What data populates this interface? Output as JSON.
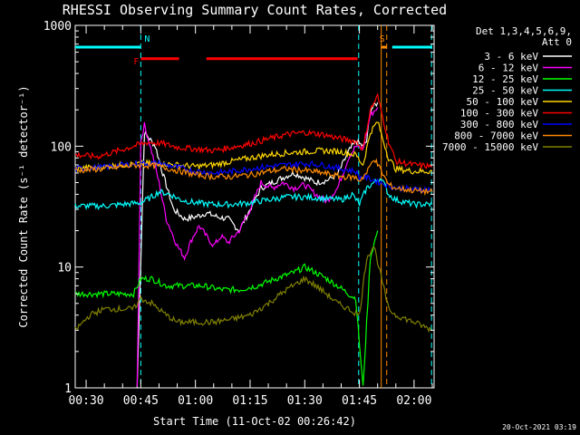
{
  "chart_data": {
    "type": "line",
    "title": "RHESSI Observing Summary Count Rates, Corrected",
    "xlabel": "Start Time (11-Oct-02 00:26:42)",
    "ylabel": "Corrected Count Rate (s⁻¹ detector⁻¹)",
    "y_log": true,
    "ylim": [
      1,
      1000
    ],
    "y_ticks": [
      "1",
      "10",
      "100",
      "1000"
    ],
    "x_range_minutes_from_0030": [
      -3.0,
      95.5
    ],
    "x_ticks": [
      {
        "min": 0,
        "label": "00:30"
      },
      {
        "min": 15,
        "label": "00:45"
      },
      {
        "min": 30,
        "label": "01:00"
      },
      {
        "min": 45,
        "label": "01:15"
      },
      {
        "min": 60,
        "label": "01:30"
      },
      {
        "min": 75,
        "label": "01:45"
      },
      {
        "min": 90,
        "label": "02:00"
      }
    ],
    "legend": {
      "placement": "right",
      "header1": "Det 1,3,4,5,6,9,",
      "header2": "Att 0"
    },
    "series": [
      {
        "name": "3 - 6 keV",
        "color": "#ffffff",
        "points": [
          [
            14,
            1
          ],
          [
            16,
            130
          ],
          [
            19,
            100
          ],
          [
            21,
            60
          ],
          [
            24,
            30
          ],
          [
            27,
            25
          ],
          [
            30,
            26
          ],
          [
            33,
            28
          ],
          [
            36,
            26
          ],
          [
            39,
            25
          ],
          [
            42,
            20
          ],
          [
            45,
            30
          ],
          [
            48,
            45
          ],
          [
            51,
            50
          ],
          [
            54,
            55
          ],
          [
            57,
            60
          ],
          [
            60,
            55
          ],
          [
            63,
            50
          ],
          [
            66,
            52
          ],
          [
            69,
            58
          ],
          [
            72,
            90
          ],
          [
            74,
            110
          ],
          [
            75,
            105
          ],
          [
            76,
            100
          ],
          [
            77,
            110
          ],
          [
            78,
            200
          ],
          [
            80,
            230
          ]
        ]
      },
      {
        "name": "6 - 12 keV",
        "color": "#ff00ff",
        "points": [
          [
            14,
            1
          ],
          [
            15,
            110
          ],
          [
            16,
            150
          ],
          [
            18,
            90
          ],
          [
            20,
            50
          ],
          [
            22,
            25
          ],
          [
            25,
            15
          ],
          [
            27,
            12
          ],
          [
            29,
            17
          ],
          [
            31,
            22
          ],
          [
            33,
            18
          ],
          [
            35,
            15
          ],
          [
            37,
            18
          ],
          [
            39,
            16
          ],
          [
            42,
            20
          ],
          [
            45,
            30
          ],
          [
            48,
            50
          ],
          [
            51,
            45
          ],
          [
            54,
            50
          ],
          [
            57,
            45
          ],
          [
            60,
            48
          ],
          [
            63,
            40
          ],
          [
            66,
            35
          ],
          [
            69,
            45
          ],
          [
            72,
            80
          ],
          [
            74,
            100
          ],
          [
            76,
            95
          ],
          [
            78,
            180
          ],
          [
            80,
            210
          ]
        ]
      },
      {
        "name": "12 - 25 keV",
        "color": "#00ff00",
        "points": [
          [
            -3,
            6
          ],
          [
            5,
            6
          ],
          [
            10,
            6
          ],
          [
            13,
            6
          ],
          [
            15,
            8
          ],
          [
            18,
            8
          ],
          [
            22,
            7
          ],
          [
            27,
            7
          ],
          [
            32,
            7
          ],
          [
            37,
            6.5
          ],
          [
            42,
            6.5
          ],
          [
            47,
            7
          ],
          [
            52,
            8
          ],
          [
            57,
            9
          ],
          [
            60,
            10
          ],
          [
            63,
            9
          ],
          [
            66,
            8
          ],
          [
            69,
            7
          ],
          [
            72,
            6
          ],
          [
            74,
            5.5
          ],
          [
            76,
            1
          ],
          [
            78,
            12
          ],
          [
            80,
            20
          ]
        ]
      },
      {
        "name": "25 - 50 keV",
        "color": "#00ffff",
        "points": [
          [
            -3,
            32
          ],
          [
            5,
            32
          ],
          [
            10,
            33
          ],
          [
            15,
            34
          ],
          [
            18,
            38
          ],
          [
            20,
            42
          ],
          [
            23,
            40
          ],
          [
            26,
            36
          ],
          [
            30,
            34
          ],
          [
            35,
            33
          ],
          [
            40,
            33
          ],
          [
            45,
            34
          ],
          [
            50,
            36
          ],
          [
            55,
            38
          ],
          [
            60,
            38
          ],
          [
            65,
            37
          ],
          [
            70,
            36
          ],
          [
            73,
            40
          ],
          [
            75,
            33
          ],
          [
            77,
            45
          ],
          [
            79,
            50
          ],
          [
            81,
            55
          ],
          [
            83,
            40
          ],
          [
            85,
            36
          ],
          [
            90,
            33
          ],
          [
            95,
            33
          ]
        ]
      },
      {
        "name": "50 - 100 keV",
        "color": "#ffd700",
        "points": [
          [
            -3,
            65
          ],
          [
            5,
            68
          ],
          [
            10,
            70
          ],
          [
            15,
            72
          ],
          [
            20,
            72
          ],
          [
            25,
            70
          ],
          [
            30,
            68
          ],
          [
            35,
            70
          ],
          [
            40,
            75
          ],
          [
            45,
            80
          ],
          [
            50,
            85
          ],
          [
            55,
            88
          ],
          [
            60,
            90
          ],
          [
            65,
            92
          ],
          [
            70,
            90
          ],
          [
            74,
            85
          ],
          [
            76,
            70
          ],
          [
            78,
            130
          ],
          [
            80,
            160
          ],
          [
            83,
            80
          ],
          [
            85,
            65
          ],
          [
            90,
            62
          ],
          [
            95,
            62
          ]
        ]
      },
      {
        "name": "100 - 300 keV",
        "color": "#ff0000",
        "points": [
          [
            -3,
            85
          ],
          [
            3,
            82
          ],
          [
            8,
            90
          ],
          [
            13,
            100
          ],
          [
            17,
            108
          ],
          [
            21,
            105
          ],
          [
            25,
            98
          ],
          [
            30,
            95
          ],
          [
            35,
            92
          ],
          [
            40,
            98
          ],
          [
            45,
            105
          ],
          [
            50,
            115
          ],
          [
            55,
            125
          ],
          [
            60,
            130
          ],
          [
            65,
            125
          ],
          [
            70,
            115
          ],
          [
            74,
            110
          ],
          [
            76,
            95
          ],
          [
            78,
            200
          ],
          [
            80,
            260
          ],
          [
            83,
            110
          ],
          [
            85,
            75
          ],
          [
            90,
            70
          ],
          [
            95,
            68
          ]
        ]
      },
      {
        "name": "300 - 800 keV",
        "color": "#0000ff",
        "points": [
          [
            -3,
            65
          ],
          [
            5,
            67
          ],
          [
            10,
            70
          ],
          [
            15,
            72
          ],
          [
            20,
            72
          ],
          [
            25,
            67
          ],
          [
            30,
            62
          ],
          [
            35,
            60
          ],
          [
            40,
            62
          ],
          [
            45,
            65
          ],
          [
            50,
            68
          ],
          [
            55,
            70
          ],
          [
            60,
            72
          ],
          [
            65,
            70
          ],
          [
            70,
            65
          ],
          [
            74,
            62
          ],
          [
            75,
            55
          ],
          [
            77,
            55
          ],
          [
            85,
            45
          ],
          [
            90,
            44
          ],
          [
            95,
            44
          ]
        ]
      },
      {
        "name": "800 - 7000 keV",
        "color": "#ff8c00",
        "points": [
          [
            -3,
            63
          ],
          [
            5,
            65
          ],
          [
            10,
            68
          ],
          [
            15,
            70
          ],
          [
            20,
            68
          ],
          [
            25,
            63
          ],
          [
            30,
            58
          ],
          [
            35,
            56
          ],
          [
            40,
            56
          ],
          [
            45,
            58
          ],
          [
            50,
            62
          ],
          [
            55,
            65
          ],
          [
            60,
            63
          ],
          [
            65,
            60
          ],
          [
            70,
            56
          ],
          [
            74,
            55
          ],
          [
            75,
            52
          ],
          [
            77,
            60
          ],
          [
            79,
            80
          ],
          [
            83,
            48
          ],
          [
            85,
            45
          ],
          [
            90,
            43
          ],
          [
            95,
            42
          ]
        ]
      },
      {
        "name": "7000 - 15000 keV",
        "color": "#808000",
        "points": [
          [
            -3,
            3
          ],
          [
            1,
            4
          ],
          [
            5,
            4.5
          ],
          [
            10,
            4.5
          ],
          [
            13,
            4.5
          ],
          [
            15,
            5.5
          ],
          [
            18,
            5
          ],
          [
            22,
            4
          ],
          [
            25,
            3.5
          ],
          [
            30,
            3.5
          ],
          [
            35,
            3.5
          ],
          [
            40,
            3.7
          ],
          [
            45,
            4
          ],
          [
            50,
            5
          ],
          [
            55,
            6.5
          ],
          [
            60,
            8
          ],
          [
            63,
            7
          ],
          [
            66,
            6
          ],
          [
            69,
            5
          ],
          [
            72,
            4.5
          ],
          [
            75,
            4
          ],
          [
            77,
            12
          ],
          [
            79,
            15
          ],
          [
            83,
            4.5
          ],
          [
            85,
            4
          ],
          [
            90,
            3.5
          ],
          [
            95,
            3
          ]
        ]
      }
    ],
    "bars": [
      {
        "label": "F",
        "color": "#ff0000",
        "level": 530,
        "segments": [
          [
            15,
            25.5
          ],
          [
            33,
            74.5
          ]
        ]
      },
      {
        "label": "N",
        "color": "#00ffff",
        "level": 660,
        "segments": [
          [
            -3,
            15
          ],
          [
            84,
            95
          ]
        ]
      },
      {
        "label": "S",
        "color": "#ff8c00",
        "level": 660,
        "segments": [
          [
            81,
            82.5
          ]
        ]
      }
    ],
    "vlines": [
      {
        "at": 15,
        "color": "#00ffff",
        "style": "dashed"
      },
      {
        "at": 74.8,
        "color": "#00ffff",
        "style": "dashed"
      },
      {
        "at": 94.8,
        "color": "#00ffff",
        "style": "dashed"
      },
      {
        "at": 81,
        "color": "#ff8c00",
        "style": "solid"
      },
      {
        "at": 82.5,
        "color": "#ff8c00",
        "style": "dashed"
      }
    ],
    "bar_labels": {
      "F": "F",
      "N": "N",
      "S": "S"
    }
  },
  "stamp": "20-Oct-2021 03:19"
}
